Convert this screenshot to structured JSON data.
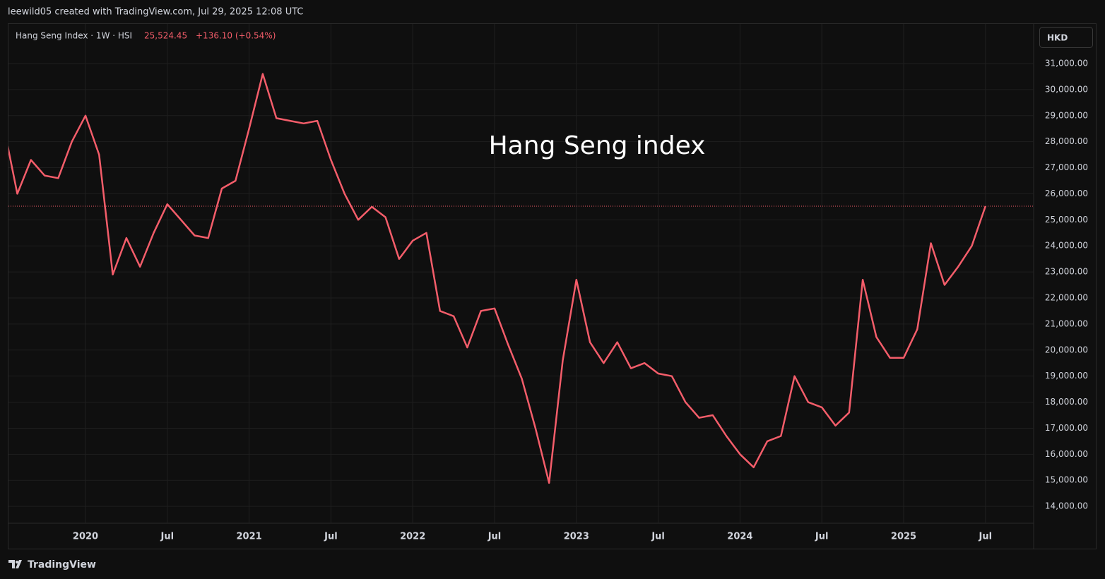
{
  "header": {
    "attribution": "leewild05 created with TradingView.com, Jul 29, 2025 12:08 UTC"
  },
  "legend": {
    "symbol": "Hang Seng Index · 1W · HSI",
    "price": "25,524.45",
    "change": "+136.10 (+0.54%)"
  },
  "currency": "HKD",
  "footer": {
    "brand": "TradingView"
  },
  "chart_data": {
    "type": "line",
    "title": "Hang Seng index",
    "x": [
      "2019-07",
      "2019-08",
      "2019-09",
      "2019-10",
      "2019-11",
      "2019-12",
      "2020-01",
      "2020-02",
      "2020-03",
      "2020-04",
      "2020-05",
      "2020-06",
      "2020-07",
      "2020-08",
      "2020-09",
      "2020-10",
      "2020-11",
      "2020-12",
      "2021-01",
      "2021-02",
      "2021-03",
      "2021-04",
      "2021-05",
      "2021-06",
      "2021-07",
      "2021-08",
      "2021-09",
      "2021-10",
      "2021-11",
      "2021-12",
      "2022-01",
      "2022-02",
      "2022-03",
      "2022-04",
      "2022-05",
      "2022-06",
      "2022-07",
      "2022-08",
      "2022-09",
      "2022-10",
      "2022-11",
      "2022-12",
      "2023-01",
      "2023-02",
      "2023-03",
      "2023-04",
      "2023-05",
      "2023-06",
      "2023-07",
      "2023-08",
      "2023-09",
      "2023-10",
      "2023-11",
      "2023-12",
      "2024-01",
      "2024-02",
      "2024-03",
      "2024-04",
      "2024-05",
      "2024-06",
      "2024-07",
      "2024-08",
      "2024-09",
      "2024-10",
      "2024-11",
      "2024-12",
      "2025-01",
      "2025-02",
      "2025-03",
      "2025-04",
      "2025-05",
      "2025-06",
      "2025-07"
    ],
    "series": [
      {
        "name": "Hang Seng Index · 1W · HSI",
        "color": "#f45d6a",
        "values": [
          28600,
          26000,
          27300,
          26700,
          26600,
          28000,
          29000,
          27500,
          22900,
          24300,
          23200,
          24500,
          25600,
          25000,
          24400,
          24300,
          26200,
          26500,
          28500,
          30600,
          28900,
          28800,
          28700,
          28800,
          27300,
          26000,
          25000,
          25500,
          25100,
          23500,
          24200,
          24500,
          21500,
          21300,
          20100,
          21500,
          21600,
          20200,
          18900,
          17000,
          14900,
          19600,
          22700,
          20300,
          19500,
          20300,
          19300,
          19500,
          19100,
          19000,
          18000,
          17400,
          17500,
          16700,
          16000,
          15500,
          16500,
          16700,
          19000,
          18000,
          17800,
          17100,
          17600,
          22700,
          20500,
          19700,
          19700,
          20800,
          24100,
          22500,
          23200,
          24000,
          25524.45
        ]
      }
    ],
    "xlim": [
      "2019-07",
      "2025-10"
    ],
    "xticks": [
      {
        "value": "2020-01",
        "label": "2020"
      },
      {
        "value": "2020-07",
        "label": "Jul"
      },
      {
        "value": "2021-01",
        "label": "2021"
      },
      {
        "value": "2021-07",
        "label": "Jul"
      },
      {
        "value": "2022-01",
        "label": "2022"
      },
      {
        "value": "2022-07",
        "label": "Jul"
      },
      {
        "value": "2023-01",
        "label": "2023"
      },
      {
        "value": "2023-07",
        "label": "Jul"
      },
      {
        "value": "2024-01",
        "label": "2024"
      },
      {
        "value": "2024-07",
        "label": "Jul"
      },
      {
        "value": "2025-01",
        "label": "2025"
      },
      {
        "value": "2025-07",
        "label": "Jul"
      }
    ],
    "ylim": [
      12350,
      32490
    ],
    "yticks": [
      {
        "value": 14000,
        "label": "14,000.00"
      },
      {
        "value": 15000,
        "label": "15,000.00"
      },
      {
        "value": 16000,
        "label": "16,000.00"
      },
      {
        "value": 17000,
        "label": "17,000.00"
      },
      {
        "value": 18000,
        "label": "18,000.00"
      },
      {
        "value": 19000,
        "label": "19,000.00"
      },
      {
        "value": 20000,
        "label": "20,000.00"
      },
      {
        "value": 21000,
        "label": "21,000.00"
      },
      {
        "value": 22000,
        "label": "22,000.00"
      },
      {
        "value": 23000,
        "label": "23,000.00"
      },
      {
        "value": 24000,
        "label": "24,000.00"
      },
      {
        "value": 25000,
        "label": "25,000.00"
      },
      {
        "value": 26000,
        "label": "26,000.00"
      },
      {
        "value": 27000,
        "label": "27,000.00"
      },
      {
        "value": 28000,
        "label": "28,000.00"
      },
      {
        "value": 29000,
        "label": "29,000.00"
      },
      {
        "value": 30000,
        "label": "30,000.00"
      },
      {
        "value": 31000,
        "label": "31,000.00"
      }
    ],
    "grid": true
  }
}
